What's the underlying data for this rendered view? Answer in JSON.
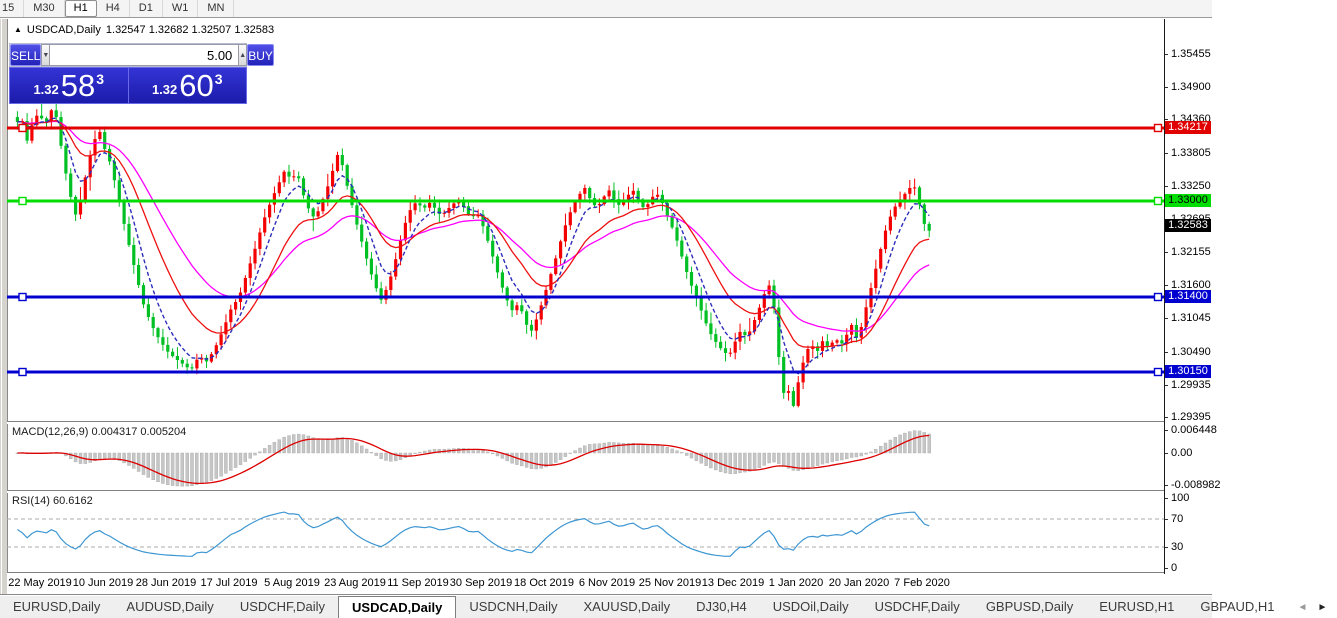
{
  "toolbar": {
    "timeframes": [
      "15",
      "M30",
      "H1",
      "H4",
      "D1",
      "W1",
      "MN"
    ],
    "active": "H1"
  },
  "chart": {
    "collapse_icon": "▲",
    "symbol": "USDCAD,Daily",
    "ohlc_text": "1.32547 1.32682 1.32507 1.32583"
  },
  "trade_panel": {
    "sell_label": "SELL",
    "buy_label": "BUY",
    "volume": "5.00",
    "sell_price": {
      "prefix": "1.32",
      "big": "58",
      "sup": "3"
    },
    "buy_price": {
      "prefix": "1.32",
      "big": "60",
      "sup": "3"
    }
  },
  "icons": {
    "spinner_down": "▼",
    "spinner_up": "▲",
    "tab_scroll_left": "◄",
    "tab_scroll_right": "►"
  },
  "price_axis": [
    "1.35455",
    "1.34900",
    "1.34360",
    "1.33805",
    "1.33250",
    "1.32695",
    "1.32155",
    "1.31600",
    "1.31045",
    "1.30490",
    "1.29935",
    "1.29395"
  ],
  "hlines": [
    {
      "label": "1.34217",
      "price": 1.34217,
      "color": "#e10000",
      "text_color": "#ffffff"
    },
    {
      "label": "1.33000",
      "price": 1.33,
      "color": "#00dd00",
      "text_color": "#000000"
    },
    {
      "label": "1.31400",
      "price": 1.314,
      "color": "#0000cf",
      "text_color": "#ffffff"
    },
    {
      "label": "1.30150",
      "price": 1.3015,
      "color": "#0000cf",
      "text_color": "#ffffff"
    }
  ],
  "current_price": {
    "label": "1.32583",
    "value": 1.32583,
    "bg": "#000000",
    "text_color": "#ffffff"
  },
  "macd": {
    "title": "MACD(12,26,9) 0.004317 0.005204",
    "axis": [
      "0.006448",
      "0.00",
      "-0.008982"
    ],
    "histogram_color": "#c6c6c6",
    "signal_color": "#dd0000",
    "current_macd": 0.004317,
    "current_signal": 0.005204
  },
  "rsi": {
    "title": "RSI(14) 60.6162",
    "axis": [
      "100",
      "70",
      "30",
      "0"
    ],
    "levels": [
      70,
      30
    ],
    "line_color": "#3d96d2",
    "current": 60.6162
  },
  "date_axis": [
    "22 May 2019",
    "10 Jun 2019",
    "28 Jun 2019",
    "17 Jul 2019",
    "5 Aug 2019",
    "23 Aug 2019",
    "11 Sep 2019",
    "30 Sep 2019",
    "18 Oct 2019",
    "6 Nov 2019",
    "25 Nov 2019",
    "13 Dec 2019",
    "1 Jan 2020",
    "20 Jan 2020",
    "7 Feb 2020"
  ],
  "tabs": {
    "items": [
      "EURUSD,Daily",
      "AUDUSD,Daily",
      "USDCHF,Daily",
      "USDCAD,Daily",
      "USDCNH,Daily",
      "XAUUSD,Daily",
      "DJ30,H4",
      "USDOil,Daily",
      "USDCHF,Daily",
      "GBPUSD,Daily",
      "EURUSD,H1",
      "GBPAUD,H1"
    ],
    "active_index": 3
  },
  "chart_data": {
    "type": "candlestick",
    "symbol": "USDCAD",
    "timeframe": "Daily",
    "title": "USDCAD,Daily",
    "last_ohlc": {
      "open": 1.32547,
      "high": 1.32682,
      "low": 1.32507,
      "close": 1.32583
    },
    "price_axis_range": [
      1.2933,
      1.3603
    ],
    "date_range": [
      "22 May 2019",
      "7 Feb 2020"
    ],
    "grid": false,
    "colors": {
      "bull": "#f40000",
      "bear": "#00c024",
      "ma_fast": "#2d2dbb",
      "ma_mid": "#ee1111",
      "ma_slow": "#ff00ff"
    },
    "overlays": [
      "EMA fast (blue dashed)",
      "EMA mid (red)",
      "EMA slow (magenta)"
    ],
    "horizontal_levels": [
      1.34217,
      1.33,
      1.314,
      1.3015
    ],
    "close_waypoints": [
      [
        8,
        1.3425
      ],
      [
        14,
        1.3442
      ],
      [
        20,
        1.34
      ],
      [
        26,
        1.3432
      ],
      [
        32,
        1.3448
      ],
      [
        38,
        1.3425
      ],
      [
        44,
        1.3452
      ],
      [
        50,
        1.3438
      ],
      [
        56,
        1.337
      ],
      [
        62,
        1.332
      ],
      [
        68,
        1.3275
      ],
      [
        74,
        1.33
      ],
      [
        80,
        1.3355
      ],
      [
        86,
        1.3395
      ],
      [
        92,
        1.342
      ],
      [
        98,
        1.3385
      ],
      [
        104,
        1.336
      ],
      [
        112,
        1.33
      ],
      [
        120,
        1.324
      ],
      [
        128,
        1.3185
      ],
      [
        136,
        1.313
      ],
      [
        144,
        1.3095
      ],
      [
        152,
        1.307
      ],
      [
        160,
        1.305
      ],
      [
        168,
        1.3038
      ],
      [
        176,
        1.3028
      ],
      [
        184,
        1.3018
      ],
      [
        192,
        1.3042
      ],
      [
        200,
        1.3032
      ],
      [
        208,
        1.3055
      ],
      [
        216,
        1.3085
      ],
      [
        224,
        1.312
      ],
      [
        232,
        1.314
      ],
      [
        240,
        1.318
      ],
      [
        248,
        1.322
      ],
      [
        256,
        1.3265
      ],
      [
        264,
        1.33
      ],
      [
        272,
        1.333
      ],
      [
        278,
        1.3352
      ],
      [
        284,
        1.3335
      ],
      [
        290,
        1.3348
      ],
      [
        296,
        1.3312
      ],
      [
        302,
        1.3285
      ],
      [
        308,
        1.327
      ],
      [
        314,
        1.3295
      ],
      [
        320,
        1.332
      ],
      [
        326,
        1.3352
      ],
      [
        332,
        1.3385
      ],
      [
        338,
        1.334
      ],
      [
        344,
        1.33
      ],
      [
        350,
        1.326
      ],
      [
        356,
        1.3225
      ],
      [
        362,
        1.319
      ],
      [
        368,
        1.316
      ],
      [
        374,
        1.3135
      ],
      [
        380,
        1.3155
      ],
      [
        386,
        1.3185
      ],
      [
        392,
        1.3225
      ],
      [
        398,
        1.3262
      ],
      [
        404,
        1.3288
      ],
      [
        410,
        1.33
      ],
      [
        416,
        1.3285
      ],
      [
        422,
        1.3298
      ],
      [
        428,
        1.3288
      ],
      [
        434,
        1.3275
      ],
      [
        440,
        1.3285
      ],
      [
        446,
        1.3295
      ],
      [
        452,
        1.3302
      ],
      [
        458,
        1.3288
      ],
      [
        464,
        1.327
      ],
      [
        470,
        1.3282
      ],
      [
        476,
        1.3258
      ],
      [
        482,
        1.3228
      ],
      [
        488,
        1.3195
      ],
      [
        494,
        1.3162
      ],
      [
        500,
        1.3135
      ],
      [
        506,
        1.3115
      ],
      [
        512,
        1.3132
      ],
      [
        518,
        1.3098
      ],
      [
        524,
        1.3082
      ],
      [
        530,
        1.3105
      ],
      [
        536,
        1.3135
      ],
      [
        542,
        1.3168
      ],
      [
        548,
        1.32
      ],
      [
        554,
        1.3235
      ],
      [
        560,
        1.3268
      ],
      [
        566,
        1.3292
      ],
      [
        572,
        1.331
      ],
      [
        578,
        1.3322
      ],
      [
        584,
        1.33
      ],
      [
        590,
        1.3288
      ],
      [
        596,
        1.3305
      ],
      [
        602,
        1.3318
      ],
      [
        608,
        1.33
      ],
      [
        614,
        1.329
      ],
      [
        620,
        1.3308
      ],
      [
        626,
        1.3318
      ],
      [
        632,
        1.33
      ],
      [
        638,
        1.3285
      ],
      [
        644,
        1.3305
      ],
      [
        650,
        1.3312
      ],
      [
        656,
        1.3295
      ],
      [
        662,
        1.3268
      ],
      [
        668,
        1.3245
      ],
      [
        674,
        1.3212
      ],
      [
        680,
        1.318
      ],
      [
        686,
        1.3152
      ],
      [
        692,
        1.3128
      ],
      [
        698,
        1.31
      ],
      [
        704,
        1.3078
      ],
      [
        710,
        1.3062
      ],
      [
        716,
        1.305
      ],
      [
        722,
        1.3042
      ],
      [
        728,
        1.3065
      ],
      [
        734,
        1.3085
      ],
      [
        740,
        1.3072
      ],
      [
        746,
        1.3095
      ],
      [
        752,
        1.312
      ],
      [
        758,
        1.3148
      ],
      [
        762,
        1.316
      ],
      [
        766,
        1.314
      ],
      [
        770,
        1.307
      ],
      [
        774,
        1.3005
      ],
      [
        778,
        1.2968
      ],
      [
        782,
        1.2985
      ],
      [
        786,
        1.2955
      ],
      [
        790,
        1.299
      ],
      [
        794,
        1.3015
      ],
      [
        798,
        1.3045
      ],
      [
        804,
        1.3062
      ],
      [
        810,
        1.3048
      ],
      [
        816,
        1.3068
      ],
      [
        822,
        1.3055
      ],
      [
        828,
        1.3072
      ],
      [
        834,
        1.306
      ],
      [
        840,
        1.3078
      ],
      [
        846,
        1.3098
      ],
      [
        850,
        1.3068
      ],
      [
        854,
        1.3088
      ],
      [
        858,
        1.3115
      ],
      [
        862,
        1.3142
      ],
      [
        866,
        1.3168
      ],
      [
        870,
        1.3195
      ],
      [
        874,
        1.3222
      ],
      [
        878,
        1.3248
      ],
      [
        882,
        1.3268
      ],
      [
        886,
        1.3285
      ],
      [
        890,
        1.3295
      ],
      [
        894,
        1.3305
      ],
      [
        898,
        1.3312
      ],
      [
        902,
        1.332
      ],
      [
        906,
        1.3328
      ],
      [
        910,
        1.3315
      ],
      [
        914,
        1.3282
      ],
      [
        918,
        1.3258
      ],
      [
        922,
        1.325
      ],
      [
        925,
        1.32583
      ]
    ],
    "subcharts": [
      {
        "type": "macd_histogram",
        "params": "12,26,9",
        "current_values": [
          0.004317,
          0.005204
        ],
        "axis_range": [
          -0.008982,
          0.006448
        ]
      },
      {
        "type": "rsi",
        "params": "14",
        "current_value": 60.6162,
        "levels": [
          70,
          30
        ],
        "axis_range": [
          0,
          100
        ]
      }
    ]
  }
}
